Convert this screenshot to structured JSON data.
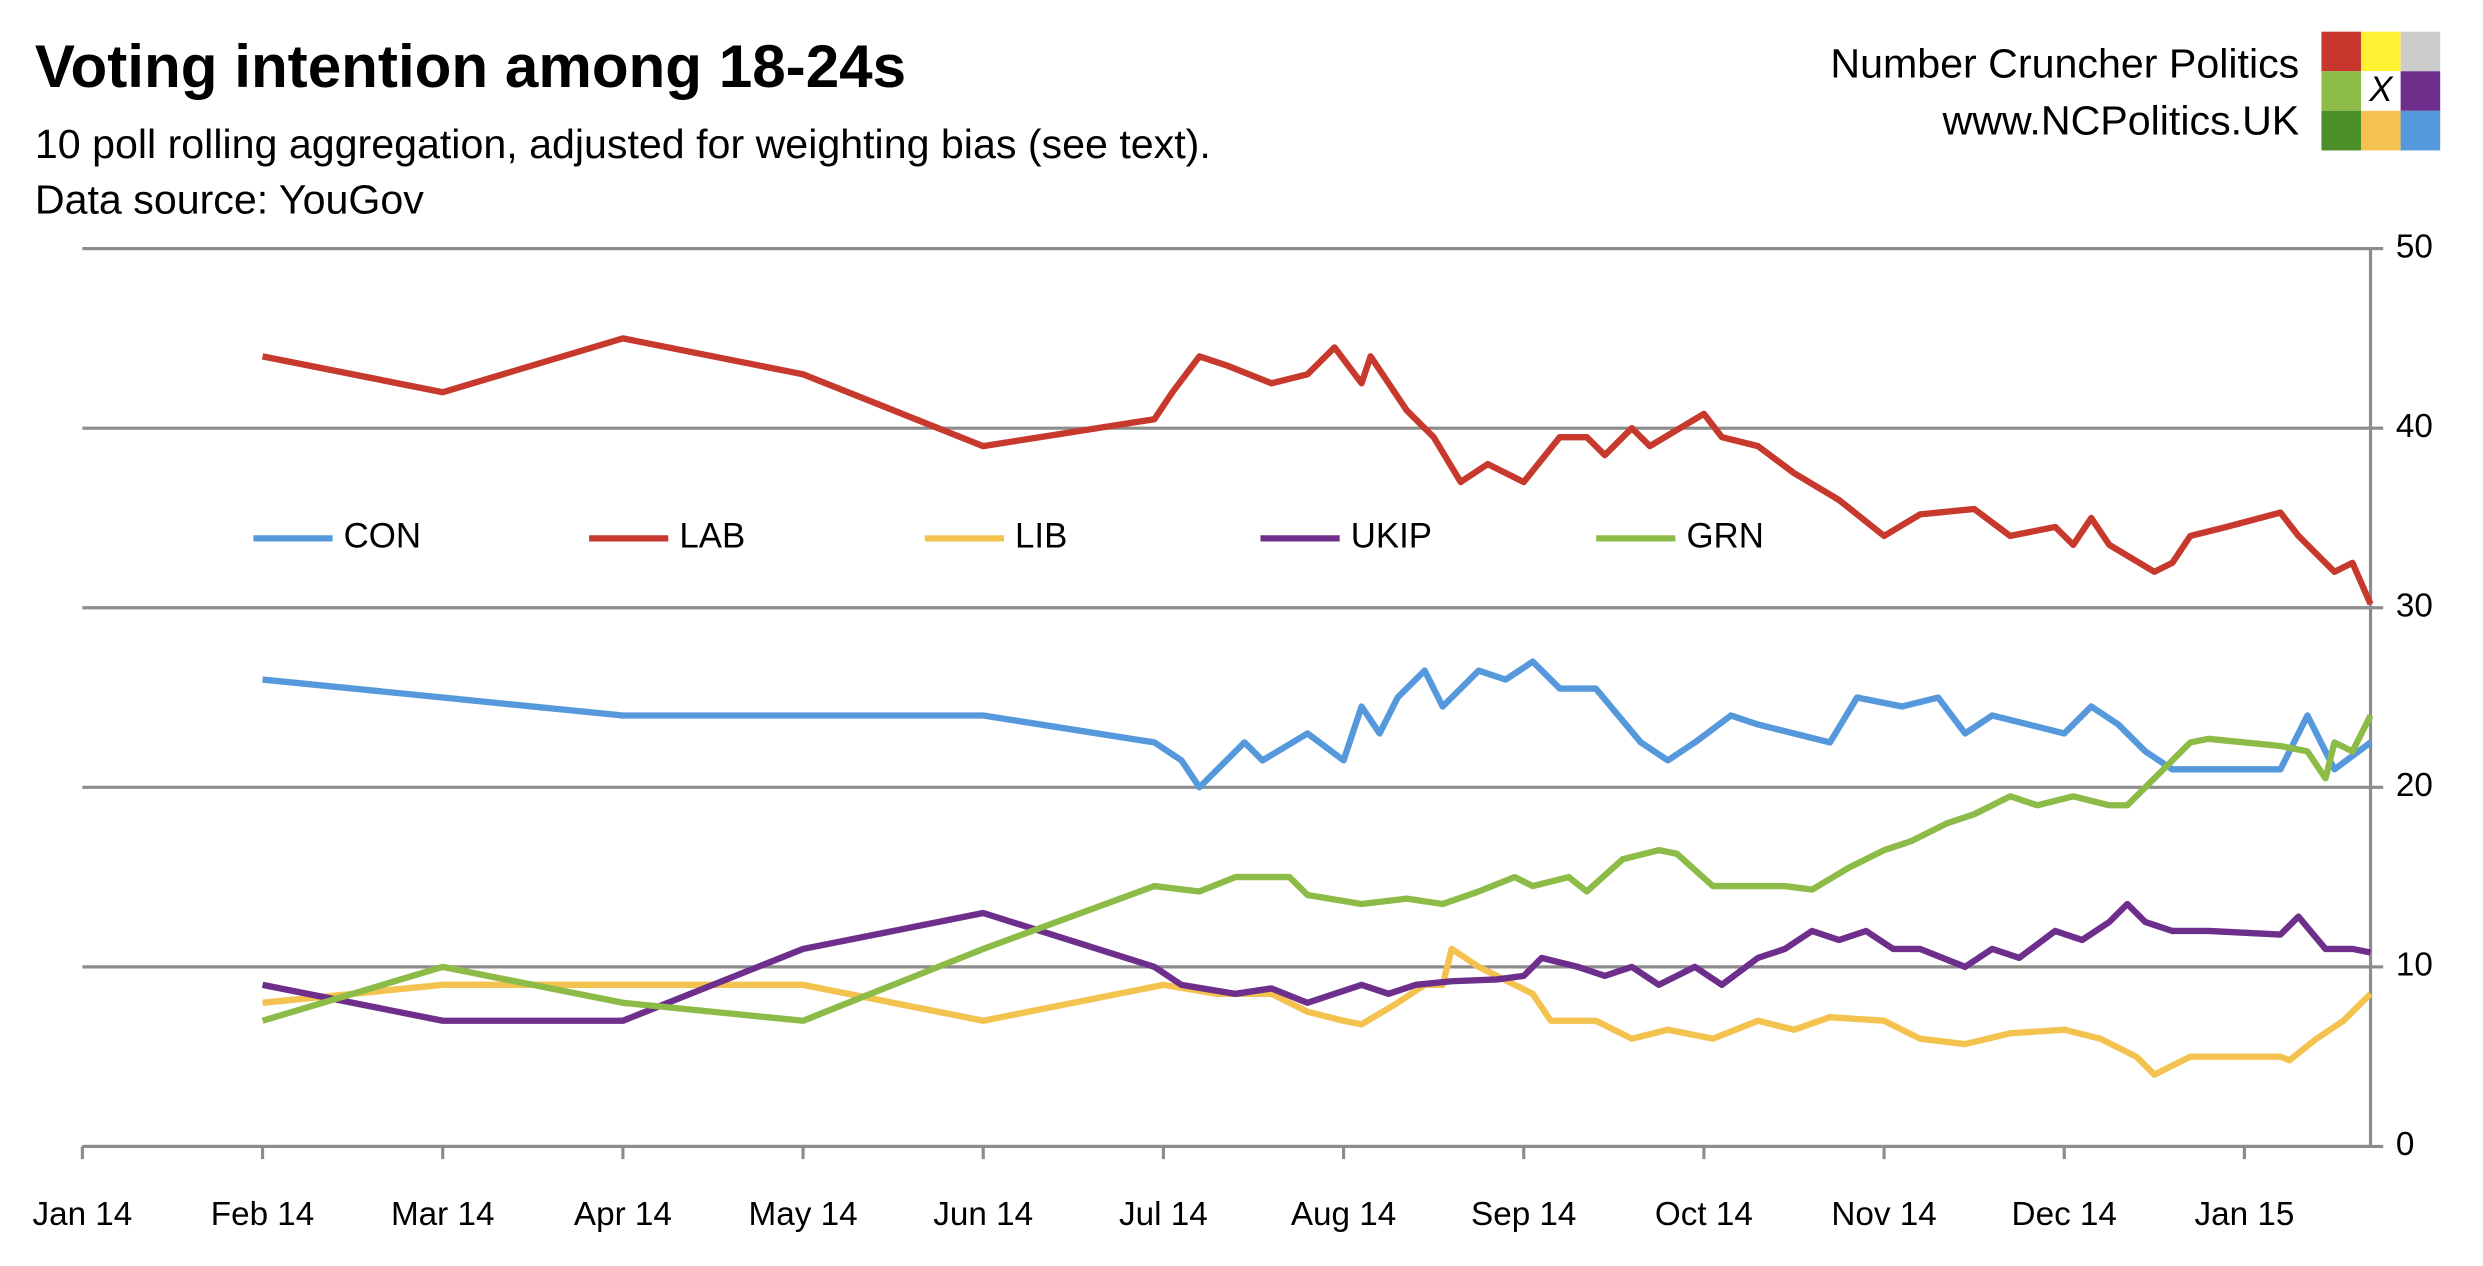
{
  "chart_data": {
    "type": "line",
    "title": "Voting intention among 18-24s",
    "subtitle": "10 poll rolling aggregation, adjusted for weighting bias (see text).",
    "source": "Data source: YouGov",
    "brand": "Number Cruncher Politics",
    "website": "www.NCPolitics.UK",
    "logo_mark": "X",
    "xlim": [
      0,
      12.7
    ],
    "xticks": [
      {
        "value": 0,
        "label": "Jan 14"
      },
      {
        "value": 1,
        "label": "Feb 14"
      },
      {
        "value": 2,
        "label": "Mar 14"
      },
      {
        "value": 3,
        "label": "Apr 14"
      },
      {
        "value": 4,
        "label": "May 14"
      },
      {
        "value": 5,
        "label": "Jun 14"
      },
      {
        "value": 6,
        "label": "Jul 14"
      },
      {
        "value": 7,
        "label": "Aug 14"
      },
      {
        "value": 8,
        "label": "Sep 14"
      },
      {
        "value": 9,
        "label": "Oct 14"
      },
      {
        "value": 10,
        "label": "Nov 14"
      },
      {
        "value": 11,
        "label": "Dec 14"
      },
      {
        "value": 12,
        "label": "Jan 15"
      }
    ],
    "ylim": [
      0,
      50
    ],
    "yticks": [
      0,
      10,
      20,
      30,
      40,
      50
    ],
    "y_axis_side": "right",
    "grid": true,
    "legend": "top",
    "series": [
      {
        "name": "CON",
        "color": "#5599dc",
        "x": [
          1,
          2,
          3,
          4,
          5,
          5.95,
          6.1,
          6.2,
          6.3,
          6.45,
          6.55,
          6.8,
          7.0,
          7.1,
          7.2,
          7.3,
          7.45,
          7.55,
          7.75,
          7.9,
          8.05,
          8.2,
          8.4,
          8.65,
          8.8,
          8.95,
          9.15,
          9.3,
          9.5,
          9.7,
          9.85,
          10.1,
          10.3,
          10.45,
          10.6,
          10.8,
          11.0,
          11.15,
          11.3,
          11.45,
          11.6,
          12.1,
          12.2,
          12.35,
          12.5,
          12.7
        ],
        "values": [
          26,
          25,
          24,
          24,
          24,
          22.5,
          21.5,
          20,
          21,
          22.5,
          21.5,
          23,
          21.5,
          24.5,
          23,
          25,
          26.5,
          24.5,
          26.5,
          26,
          27,
          25.5,
          25.5,
          22.5,
          21.5,
          22.5,
          24,
          23.5,
          23,
          22.5,
          25,
          24.5,
          25,
          23,
          24,
          23.5,
          23,
          24.5,
          23.5,
          22,
          21,
          21,
          21,
          24,
          21,
          22.5
        ]
      },
      {
        "name": "LAB",
        "color": "#c7392c",
        "x": [
          1,
          2,
          3,
          4,
          5,
          5.95,
          6.05,
          6.2,
          6.35,
          6.6,
          6.8,
          6.95,
          7.1,
          7.15,
          7.35,
          7.5,
          7.65,
          7.8,
          8.0,
          8.2,
          8.35,
          8.45,
          8.6,
          8.7,
          9.0,
          9.1,
          9.3,
          9.5,
          9.75,
          10.0,
          10.2,
          10.5,
          10.7,
          10.95,
          11.05,
          11.15,
          11.25,
          11.5,
          11.6,
          11.7,
          11.9,
          12.2,
          12.3,
          12.4,
          12.5,
          12.6,
          12.7
        ],
        "values": [
          44,
          42,
          45,
          43,
          39,
          40.5,
          42,
          44,
          43.5,
          42.5,
          43,
          44.5,
          42.5,
          44,
          41,
          39.5,
          37,
          38,
          37,
          39.5,
          39.5,
          38.5,
          40,
          39,
          40.8,
          39.5,
          39,
          37.5,
          36,
          34,
          35.2,
          35.5,
          34,
          34.5,
          33.5,
          35,
          33.5,
          32,
          32.5,
          34,
          34.5,
          35.3,
          34,
          33,
          32,
          32.5,
          30.2
        ]
      },
      {
        "name": "LIB",
        "color": "#f3c24f",
        "x": [
          1,
          2,
          3,
          4,
          5,
          6,
          6.3,
          6.6,
          6.8,
          7.0,
          7.1,
          7.3,
          7.45,
          7.55,
          7.6,
          7.75,
          7.95,
          8.05,
          8.15,
          8.4,
          8.6,
          8.8,
          9.05,
          9.3,
          9.5,
          9.7,
          10.0,
          10.2,
          10.45,
          10.7,
          11.0,
          11.2,
          11.4,
          11.5,
          11.7,
          12.2,
          12.25,
          12.4,
          12.55,
          12.7
        ],
        "values": [
          8,
          9,
          9,
          9,
          7,
          9,
          8.5,
          8.5,
          7.5,
          7,
          6.8,
          8,
          9,
          9,
          11,
          10,
          9,
          8.5,
          7,
          7,
          6,
          6.5,
          6,
          7,
          6.5,
          7.2,
          7,
          6,
          5.7,
          6.3,
          6.5,
          6,
          5,
          4,
          5,
          5,
          4.8,
          6,
          7,
          8.5
        ]
      },
      {
        "name": "UKIP",
        "color": "#6e2f8c",
        "x": [
          1,
          2,
          3,
          4,
          5,
          5.95,
          6.1,
          6.4,
          6.6,
          6.8,
          7.1,
          7.25,
          7.4,
          7.6,
          7.85,
          8.0,
          8.1,
          8.3,
          8.45,
          8.6,
          8.75,
          8.95,
          9.1,
          9.3,
          9.45,
          9.6,
          9.75,
          9.9,
          10.05,
          10.2,
          10.45,
          10.6,
          10.75,
          10.95,
          11.1,
          11.25,
          11.35,
          11.45,
          11.6,
          11.8,
          12.2,
          12.3,
          12.45,
          12.6,
          12.7
        ],
        "values": [
          9,
          7,
          7,
          11,
          13,
          10,
          9,
          8.5,
          8.8,
          8,
          9,
          8.5,
          9,
          9.2,
          9.3,
          9.5,
          10.5,
          10,
          9.5,
          10,
          9,
          10,
          9,
          10.5,
          11,
          12,
          11.5,
          12,
          11,
          11,
          10,
          11,
          10.5,
          12,
          11.5,
          12.5,
          13.5,
          12.5,
          12,
          12,
          11.8,
          12.8,
          11,
          11,
          10.8
        ]
      },
      {
        "name": "GRN",
        "color": "#8dbb47",
        "x": [
          1,
          2,
          3,
          4,
          5,
          5.95,
          6.2,
          6.4,
          6.7,
          6.8,
          7.1,
          7.35,
          7.55,
          7.75,
          7.95,
          8.05,
          8.25,
          8.35,
          8.55,
          8.75,
          8.85,
          9.05,
          9.25,
          9.45,
          9.6,
          9.8,
          10.0,
          10.15,
          10.35,
          10.5,
          10.7,
          10.85,
          11.05,
          11.25,
          11.35,
          11.5,
          11.7,
          11.8,
          12.2,
          12.35,
          12.45,
          12.5,
          12.6,
          12.7
        ],
        "values": [
          7,
          10,
          8,
          7,
          11,
          14.5,
          14.2,
          15,
          15,
          14,
          13.5,
          13.8,
          13.5,
          14.2,
          15,
          14.5,
          15,
          14.2,
          16,
          16.5,
          16.3,
          14.5,
          14.5,
          14.5,
          14.3,
          15.5,
          16.5,
          17,
          18,
          18.5,
          19.5,
          19,
          19.5,
          19,
          19,
          20.5,
          22.5,
          22.7,
          22.3,
          22,
          20.5,
          22.5,
          22,
          24
        ]
      }
    ]
  }
}
